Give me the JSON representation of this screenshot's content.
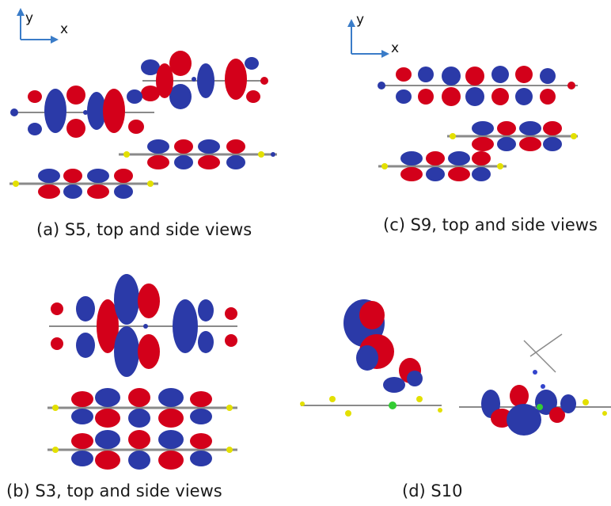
{
  "panels": [
    {
      "id": "a",
      "caption": "(a) S5, top and side views"
    },
    {
      "id": "b",
      "caption": "(b) S3, top and side views"
    },
    {
      "id": "c",
      "caption": "(c) S9, top and side views"
    },
    {
      "id": "d",
      "caption": "(d) S10"
    }
  ],
  "axes": {
    "x_label": "x",
    "y_label": "y"
  },
  "colors": {
    "lobe_positive": "#d3001a",
    "lobe_negative": "#2b3aa8",
    "bond": "#8a8a8a",
    "atom_carbon": "#7a7a7a",
    "atom_sulfur": "#e3e000",
    "atom_metal": "#33cc33",
    "atom_nitrogen": "#3344cc",
    "atom_hydrogen": "#e8e8e8",
    "axis_arrow": "#3a7cc8"
  }
}
